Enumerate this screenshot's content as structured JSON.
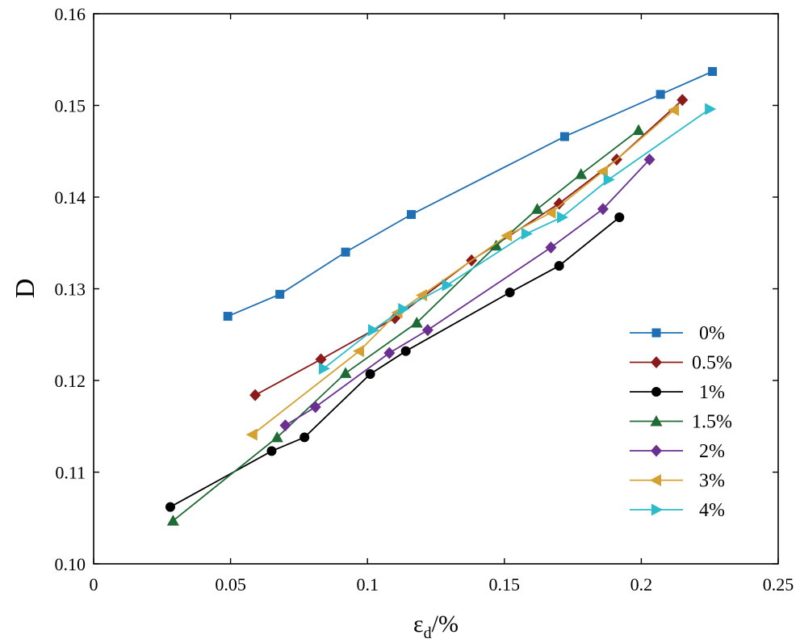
{
  "chart_data": {
    "type": "line",
    "title": "",
    "xlabel_main": "ε",
    "xlabel_sub": "d",
    "xlabel_tail": "/%",
    "ylabel": "D",
    "xlim": [
      0,
      0.25
    ],
    "ylim": [
      0.1,
      0.16
    ],
    "grid": false,
    "legend_position": "right",
    "xticks": [
      0,
      0.05,
      0.1,
      0.15,
      0.2,
      0.25
    ],
    "xtick_labels": [
      "0",
      "0.05",
      "0.1",
      "0.15",
      "0.2",
      "0.25"
    ],
    "yticks": [
      0.1,
      0.11,
      0.12,
      0.13,
      0.14,
      0.15,
      0.16
    ],
    "ytick_labels": [
      "0.10",
      "0.11",
      "0.12",
      "0.13",
      "0.14",
      "0.15",
      "0.16"
    ],
    "series": [
      {
        "name": "0%",
        "color": "#1f6fb4",
        "marker": "square",
        "x": [
          0.049,
          0.068,
          0.092,
          0.116,
          0.172,
          0.207,
          0.226
        ],
        "y": [
          0.127,
          0.1294,
          0.134,
          0.1381,
          0.1466,
          0.1512,
          0.1537
        ]
      },
      {
        "name": "0.5%",
        "color": "#8b1a1a",
        "marker": "diamond",
        "x": [
          0.059,
          0.083,
          0.11,
          0.138,
          0.17,
          0.191,
          0.215
        ],
        "y": [
          0.1184,
          0.1223,
          0.1268,
          0.1331,
          0.1393,
          0.1441,
          0.1506
        ]
      },
      {
        "name": "1%",
        "color": "#000000",
        "marker": "circle",
        "x": [
          0.028,
          0.065,
          0.077,
          0.101,
          0.114,
          0.152,
          0.17,
          0.192
        ],
        "y": [
          0.1062,
          0.1123,
          0.1138,
          0.1207,
          0.1232,
          0.1296,
          0.1325,
          0.1378
        ]
      },
      {
        "name": "1.5%",
        "color": "#1e6b35",
        "marker": "triangle-up",
        "x": [
          0.029,
          0.067,
          0.092,
          0.118,
          0.147,
          0.162,
          0.178,
          0.199
        ],
        "y": [
          0.1047,
          0.1138,
          0.1208,
          0.1263,
          0.1347,
          0.1387,
          0.1425,
          0.1473
        ]
      },
      {
        "name": "2%",
        "color": "#6a2f90",
        "marker": "diamond",
        "x": [
          0.07,
          0.081,
          0.108,
          0.122,
          0.167,
          0.186,
          0.203
        ],
        "y": [
          0.1151,
          0.1171,
          0.123,
          0.1255,
          0.1345,
          0.1387,
          0.1441
        ]
      },
      {
        "name": "3%",
        "color": "#d4a030",
        "marker": "triangle-left",
        "x": [
          0.058,
          0.097,
          0.111,
          0.12,
          0.151,
          0.167,
          0.186,
          0.212
        ],
        "y": [
          0.1141,
          0.1232,
          0.1274,
          0.1293,
          0.1358,
          0.1383,
          0.1428,
          0.1495
        ]
      },
      {
        "name": "4%",
        "color": "#2bbccc",
        "marker": "triangle-right",
        "x": [
          0.084,
          0.102,
          0.113,
          0.129,
          0.158,
          0.171,
          0.188,
          0.225
        ],
        "y": [
          0.1213,
          0.1255,
          0.1278,
          0.1304,
          0.136,
          0.1378,
          0.1419,
          0.1496
        ]
      }
    ]
  }
}
